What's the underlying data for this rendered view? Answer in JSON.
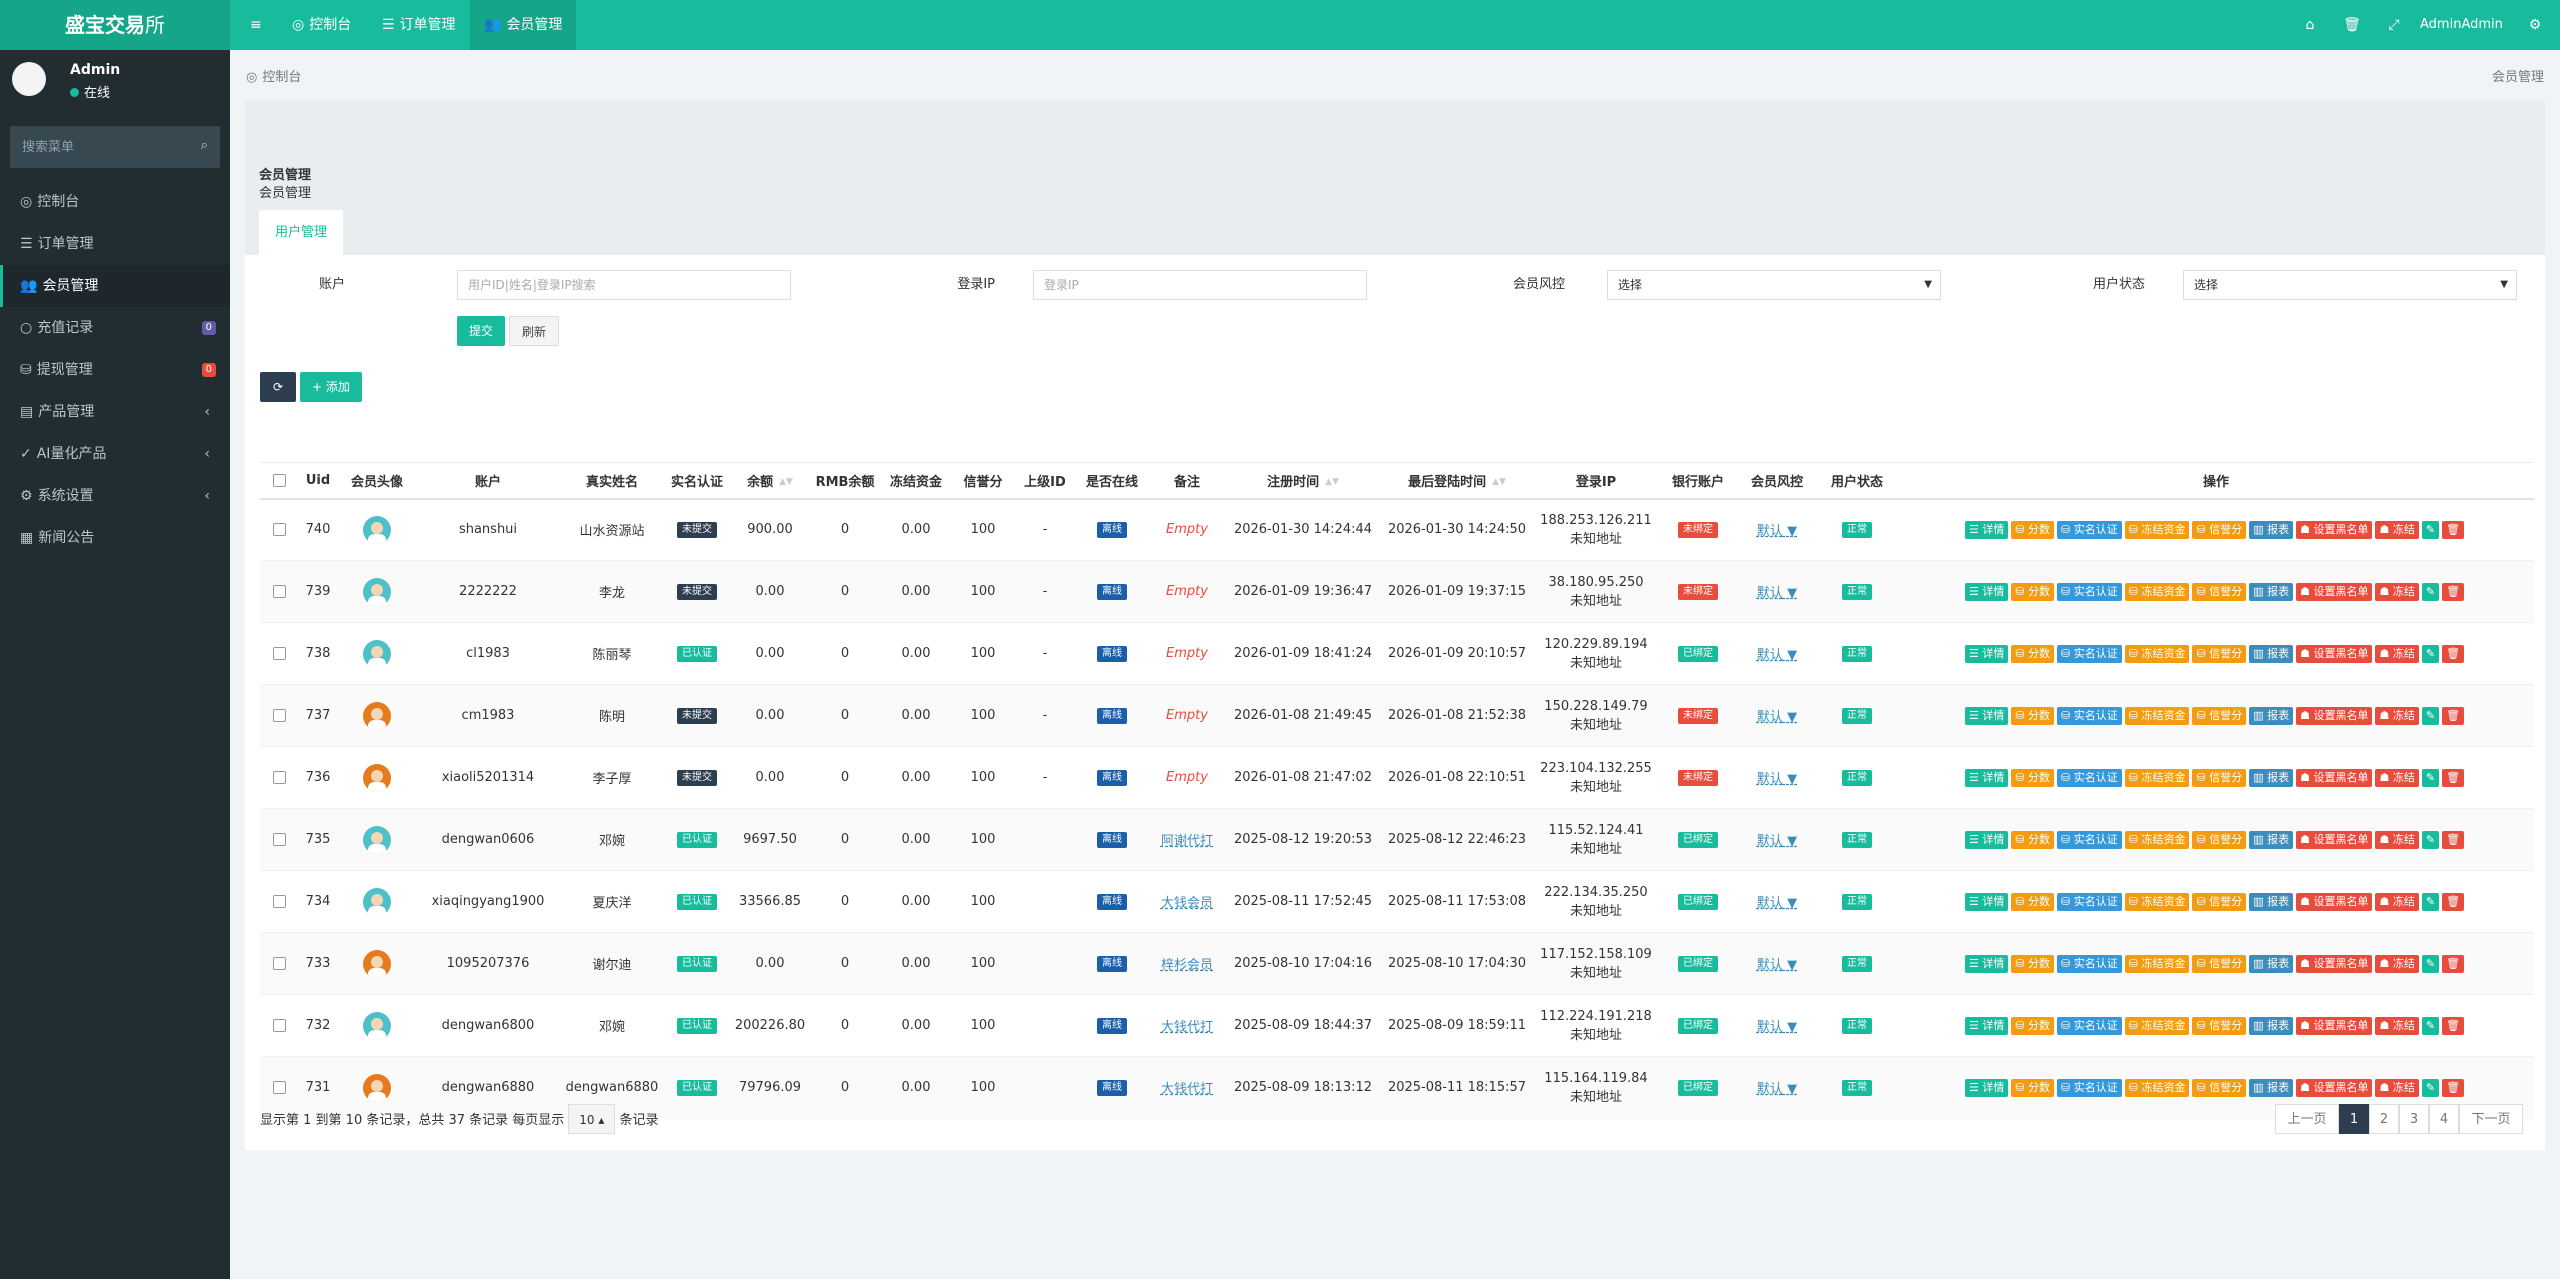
{
  "header": {
    "logo_bold": "盛宝交易",
    "logo_light": "所",
    "menu_toggle": "≡",
    "nav": [
      {
        "icon": "dashboard-icon",
        "label": "控制台"
      },
      {
        "icon": "list-icon",
        "label": "订单管理"
      },
      {
        "icon": "users-icon",
        "label": "会员管理"
      }
    ],
    "admin_name": "Admin"
  },
  "sidebar": {
    "user_name": "Admin",
    "user_status": "在线",
    "search_placeholder": "搜索菜单",
    "items": [
      {
        "icon": "dashboard-icon",
        "label": "控制台"
      },
      {
        "icon": "list-icon",
        "label": "订单管理"
      },
      {
        "icon": "users-icon",
        "label": "会员管理"
      },
      {
        "icon": "circle-icon",
        "label": "充值记录",
        "badge": "0"
      },
      {
        "icon": "withdraw-icon",
        "label": "提现管理",
        "badge": "0"
      },
      {
        "icon": "box-icon",
        "label": "产品管理"
      },
      {
        "icon": "check-circle-icon",
        "label": "AI量化产品"
      },
      {
        "icon": "gears-icon",
        "label": "系统设置"
      },
      {
        "icon": "newspaper-icon",
        "label": "新闻公告"
      }
    ],
    "badge_colors": [
      "#605ca8",
      "#e74c3c"
    ]
  },
  "breadcrumb": {
    "left": "控制台",
    "right": "会员管理"
  },
  "panel": {
    "title": "会员管理",
    "subtitle": "会员管理",
    "tab": "用户管理"
  },
  "filters": {
    "account_label": "账户",
    "account_placeholder": "用户ID|姓名|登录IP搜索",
    "ip_label": "登录IP",
    "ip_placeholder": "登录IP",
    "risk_label": "会员风控",
    "risk_value": "选择",
    "status_label": "用户状态",
    "status_value": "选择",
    "submit": "提交",
    "reset": "刷新"
  },
  "toolbar": {
    "add": "添加"
  },
  "table": {
    "headers": [
      "Uid",
      "会员头像",
      "账户",
      "真实姓名",
      "实名认证",
      "余额",
      "RMB余额",
      "冻结资金",
      "信誉分",
      "上级ID",
      "是否在线",
      "备注",
      "注册时间",
      "最后登陆时间",
      "登录IP",
      "银行账户",
      "会员风控",
      "用户状态",
      "操作"
    ],
    "ops": [
      "详情",
      "分数",
      "实名认证",
      "冻结资金",
      "信誉分",
      "报表",
      "设置黑名单",
      "冻结"
    ],
    "rows": [
      {
        "uid": "740",
        "avatar": "teal",
        "account": "shanshui",
        "name": "山水资源站",
        "auth": "未提交",
        "balance": "900.00",
        "rmb": "0",
        "frozen": "0.00",
        "credit": "100",
        "parent": "-",
        "online": "离线",
        "remark": "Empty",
        "reg": "2026-01-30 14:24:44",
        "last": "2026-01-30 14:24:50",
        "ip": "188.253.126.211",
        "ip_loc": "未知地址",
        "bank": "未绑定",
        "risk": "默认",
        "status": "正常"
      },
      {
        "uid": "739",
        "avatar": "teal",
        "account": "2222222",
        "name": "李龙",
        "auth": "未提交",
        "balance": "0.00",
        "rmb": "0",
        "frozen": "0.00",
        "credit": "100",
        "parent": "-",
        "online": "离线",
        "remark": "Empty",
        "reg": "2026-01-09 19:36:47",
        "last": "2026-01-09 19:37:15",
        "ip": "38.180.95.250",
        "ip_loc": "未知地址",
        "bank": "未绑定",
        "risk": "默认",
        "status": "正常"
      },
      {
        "uid": "738",
        "avatar": "teal",
        "account": "cl1983",
        "name": "陈丽琴",
        "auth": "已认证",
        "balance": "0.00",
        "rmb": "0",
        "frozen": "0.00",
        "credit": "100",
        "parent": "-",
        "online": "离线",
        "remark": "Empty",
        "reg": "2026-01-09 18:41:24",
        "last": "2026-01-09 20:10:57",
        "ip": "120.229.89.194",
        "ip_loc": "未知地址",
        "bank": "已绑定",
        "risk": "默认",
        "status": "正常"
      },
      {
        "uid": "737",
        "avatar": "orange",
        "account": "cm1983",
        "name": "陈明",
        "auth": "未提交",
        "balance": "0.00",
        "rmb": "0",
        "frozen": "0.00",
        "credit": "100",
        "parent": "-",
        "online": "离线",
        "remark": "Empty",
        "reg": "2026-01-08 21:49:45",
        "last": "2026-01-08 21:52:38",
        "ip": "150.228.149.79",
        "ip_loc": "未知地址",
        "bank": "未绑定",
        "risk": "默认",
        "status": "正常"
      },
      {
        "uid": "736",
        "avatar": "orange",
        "account": "xiaoli5201314",
        "name": "李子厚",
        "auth": "未提交",
        "balance": "0.00",
        "rmb": "0",
        "frozen": "0.00",
        "credit": "100",
        "parent": "-",
        "online": "离线",
        "remark": "Empty",
        "reg": "2026-01-08 21:47:02",
        "last": "2026-01-08 22:10:51",
        "ip": "223.104.132.255",
        "ip_loc": "未知地址",
        "bank": "未绑定",
        "risk": "默认",
        "status": "正常"
      },
      {
        "uid": "735",
        "avatar": "teal",
        "account": "dengwan0606",
        "name": "邓婉",
        "auth": "已认证",
        "balance": "9697.50",
        "rmb": "0",
        "frozen": "0.00",
        "credit": "100",
        "parent": "",
        "online": "离线",
        "remark": "阿谢代打",
        "reg": "2025-08-12 19:20:53",
        "last": "2025-08-12 22:46:23",
        "ip": "115.52.124.41",
        "ip_loc": "未知地址",
        "bank": "已绑定",
        "risk": "默认",
        "status": "正常"
      },
      {
        "uid": "734",
        "avatar": "teal",
        "account": "xiaqingyang1900",
        "name": "夏庆洋",
        "auth": "已认证",
        "balance": "33566.85",
        "rmb": "0",
        "frozen": "0.00",
        "credit": "100",
        "parent": "",
        "online": "离线",
        "remark": "大钱会员",
        "reg": "2025-08-11 17:52:45",
        "last": "2025-08-11 17:53:08",
        "ip": "222.134.35.250",
        "ip_loc": "未知地址",
        "bank": "已绑定",
        "risk": "默认",
        "status": "正常"
      },
      {
        "uid": "733",
        "avatar": "orange",
        "account": "1095207376",
        "name": "谢尔迪",
        "auth": "已认证",
        "balance": "0.00",
        "rmb": "0",
        "frozen": "0.00",
        "credit": "100",
        "parent": "",
        "online": "离线",
        "remark": "梓杉会员",
        "reg": "2025-08-10 17:04:16",
        "last": "2025-08-10 17:04:30",
        "ip": "117.152.158.109",
        "ip_loc": "未知地址",
        "bank": "已绑定",
        "risk": "默认",
        "status": "正常"
      },
      {
        "uid": "732",
        "avatar": "teal",
        "account": "dengwan6800",
        "name": "邓婉",
        "auth": "已认证",
        "balance": "200226.80",
        "rmb": "0",
        "frozen": "0.00",
        "credit": "100",
        "parent": "",
        "online": "离线",
        "remark": "大钱代打",
        "reg": "2025-08-09 18:44:37",
        "last": "2025-08-09 18:59:11",
        "ip": "112.224.191.218",
        "ip_loc": "未知地址",
        "bank": "已绑定",
        "risk": "默认",
        "status": "正常"
      },
      {
        "uid": "731",
        "avatar": "orange",
        "account": "dengwan6880",
        "name": "dengwan6880",
        "auth": "已认证",
        "balance": "79796.09",
        "rmb": "0",
        "frozen": "0.00",
        "credit": "100",
        "parent": "",
        "online": "离线",
        "remark": "大钱代打",
        "reg": "2025-08-09 18:13:12",
        "last": "2025-08-11 18:15:57",
        "ip": "115.164.119.84",
        "ip_loc": "未知地址",
        "bank": "已绑定",
        "risk": "默认",
        "status": "正常"
      }
    ]
  },
  "pagination": {
    "info_before": "显示第 1 到第 10 条记录，总共 37 条记录 每页显示",
    "page_size": "10",
    "info_after": "条记录",
    "prev": "上一页",
    "pages": [
      "1",
      "2",
      "3",
      "4"
    ],
    "current": "1",
    "next": "下一页"
  },
  "colors": {
    "brand": "#18bc9c",
    "sidebar": "#222d32",
    "danger": "#e74c3c",
    "warning": "#f39c12",
    "info": "#3498db"
  }
}
